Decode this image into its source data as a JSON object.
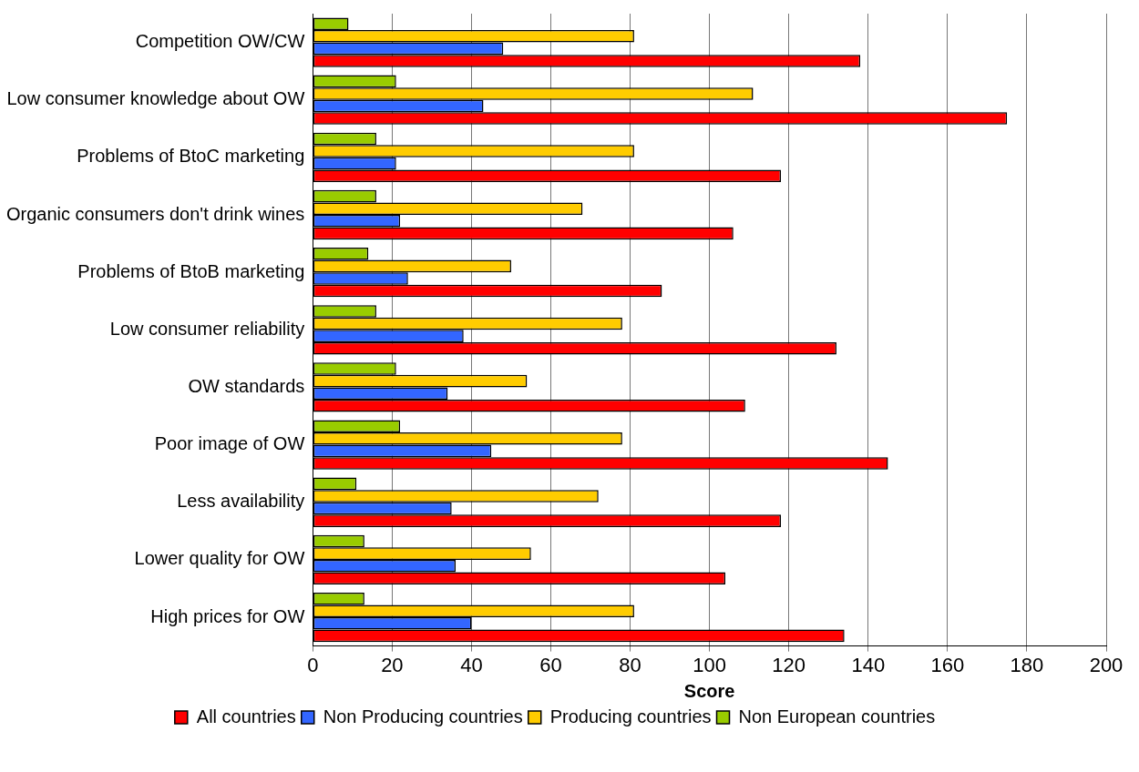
{
  "chart_data": {
    "type": "bar",
    "orientation": "horizontal",
    "xlabel": "Score",
    "categories": [
      "Competition OW/CW",
      "Low consumer knowledge about OW",
      "Problems of BtoC marketing",
      "Organic consumers don't drink wines",
      "Problems of BtoB marketing",
      "Low consumer reliability",
      "OW standards",
      "Poor image of OW",
      "Less availability",
      "Lower quality for OW",
      "High prices for OW"
    ],
    "series": [
      {
        "name": "All countries",
        "color": "#ff0000",
        "values": [
          138,
          175,
          118,
          106,
          88,
          132,
          109,
          145,
          118,
          104,
          134
        ]
      },
      {
        "name": "Non Producing countries",
        "color": "#3366ff",
        "values": [
          48,
          43,
          21,
          22,
          24,
          38,
          34,
          45,
          35,
          36,
          40
        ]
      },
      {
        "name": "Producing countries",
        "color": "#ffcc00",
        "values": [
          81,
          111,
          81,
          68,
          50,
          78,
          54,
          78,
          72,
          55,
          81
        ]
      },
      {
        "name": "Non European countries",
        "color": "#99cc00",
        "values": [
          9,
          21,
          16,
          16,
          14,
          16,
          21,
          22,
          11,
          13,
          13
        ]
      }
    ],
    "xlim": [
      0,
      200
    ],
    "xticks": [
      0,
      20,
      40,
      60,
      80,
      100,
      120,
      140,
      160,
      180,
      200
    ],
    "grid": "x",
    "legend": "bottom"
  }
}
